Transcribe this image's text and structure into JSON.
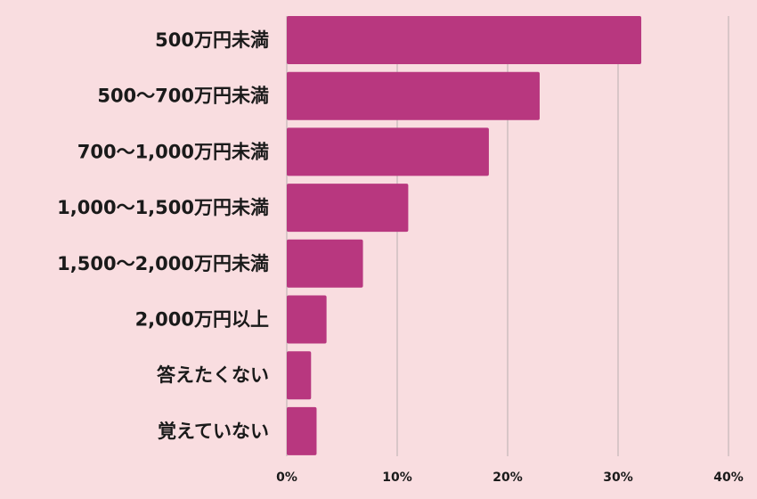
{
  "chart_data": {
    "type": "bar",
    "orientation": "horizontal",
    "categories": [
      "500万円未満",
      "500〜700万円未満",
      "700〜1,000万円未満",
      "1,000〜1,500万円未満",
      "1,500〜2,000万円未満",
      "2,000万円以上",
      "答えたくない",
      "覚えていない"
    ],
    "values": [
      32.1,
      22.9,
      18.3,
      11.0,
      6.9,
      3.6,
      2.2,
      2.7
    ],
    "unit": "%",
    "xlim": [
      0,
      40
    ],
    "x_ticks": [
      "0%",
      "10%",
      "20%",
      "30%",
      "40%"
    ],
    "grid": true,
    "colors": {
      "bar": "#b8377f",
      "background": "#f9dde0",
      "grid": "#b9aeb0",
      "text": "#1a1a1a"
    }
  }
}
